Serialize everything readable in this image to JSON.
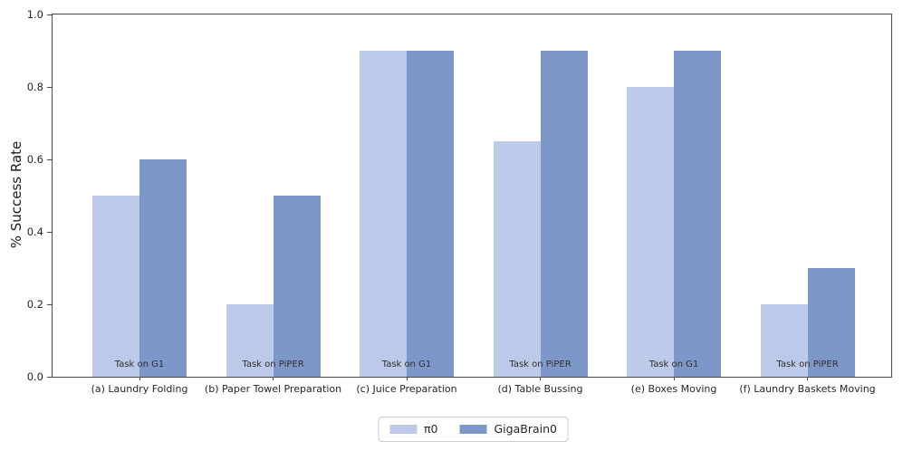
{
  "chart_data": {
    "type": "bar",
    "title": "",
    "xlabel": "",
    "ylabel": "% Success Rate",
    "ylim": [
      0.0,
      1.0
    ],
    "yticks": [
      0.0,
      0.2,
      0.4,
      0.6,
      0.8,
      1.0
    ],
    "grid": false,
    "legend_position": "bottom-center",
    "categories": [
      "(a) Laundry Folding",
      "(b) Paper Towel Preparation",
      "(c) Juice Preparation",
      "(d) Table Bussing",
      "(e) Boxes Moving",
      "(f) Laundry Baskets Moving"
    ],
    "series": [
      {
        "name": "π0",
        "color": "#bcc9e8",
        "values": [
          0.5,
          0.2,
          0.9,
          0.65,
          0.8,
          0.2
        ]
      },
      {
        "name": "GigaBrain0",
        "color": "#7d97c9",
        "values": [
          0.6,
          0.5,
          0.9,
          0.9,
          0.9,
          0.3
        ]
      }
    ],
    "bar_annotations": [
      "Task on G1",
      "Task on PiPER",
      "Task on G1",
      "Task on PiPER",
      "Task on G1",
      "Task on PiPER"
    ]
  },
  "colors": {
    "pi0_bar": "#bcc9e8",
    "gigabrain0_bar": "#7d97c9",
    "spine": "#4a4a4a",
    "tick_text": "#262626",
    "annotation_text": "#2e2e2e",
    "legend_border": "#cccccc",
    "background": "#ffffff"
  }
}
